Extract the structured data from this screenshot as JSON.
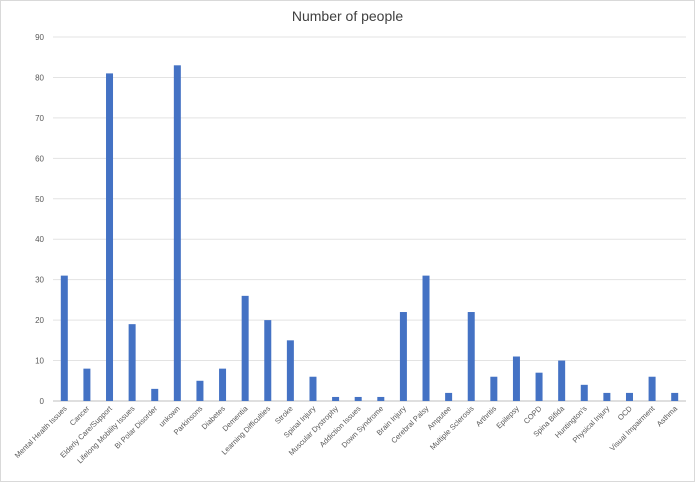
{
  "chart_data": {
    "type": "bar",
    "title": "Number of people",
    "xlabel": "",
    "ylabel": "",
    "ylim": [
      0,
      90
    ],
    "yticks": [
      0,
      10,
      20,
      30,
      40,
      50,
      60,
      70,
      80,
      90
    ],
    "grid": true,
    "legend": "none",
    "bar_color": "#4472C4",
    "categories": [
      "Mental Health Issues",
      "Cancer",
      "Elderly Care/Support",
      "Lifelong Mobility Issues",
      "Bi Polar Disorder",
      "unkown",
      "Parkinsons",
      "Diabetes",
      "Dementia",
      "Learning Difficulties",
      "Stroke",
      "Spinal Injury",
      "Muscular Dystrophy",
      "Addiction Issues",
      "Down Syndrome",
      "Brain Injury",
      "Cerebral Palsy",
      "Amputee",
      "Multiple Sclerosis",
      "Arthritis",
      "Epilepsy",
      "COPD",
      "Spina Bifida",
      "Huntington's",
      "Physical Injury",
      "OCD",
      "Visual Impairment",
      "Asthma"
    ],
    "values": [
      31,
      8,
      81,
      19,
      3,
      83,
      5,
      8,
      26,
      20,
      15,
      6,
      1,
      1,
      1,
      22,
      31,
      2,
      22,
      6,
      11,
      7,
      10,
      4,
      2,
      2,
      6,
      2
    ]
  }
}
